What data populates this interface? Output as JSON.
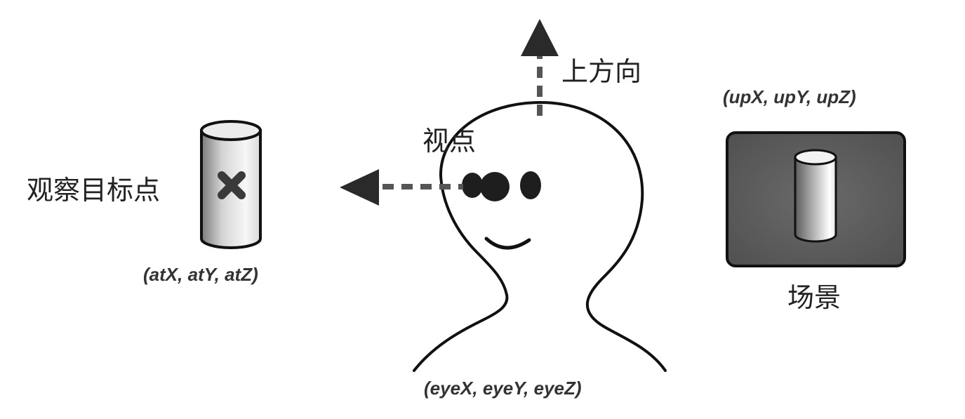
{
  "labels": {
    "up_direction": "上方向",
    "viewpoint": "视点",
    "target_point": "观察目标点",
    "scene": "场景"
  },
  "coordinates": {
    "up": "(upX, upY, upZ)",
    "at": "(atX, atY, atZ)",
    "eye": "(eyeX, eyeY, eyeZ)"
  },
  "colors": {
    "line": "#111111",
    "arrow": "#2a2a2a",
    "dash": "#555555",
    "marker": "#3a3a3a",
    "scene_bg": "#5a5a5a"
  }
}
